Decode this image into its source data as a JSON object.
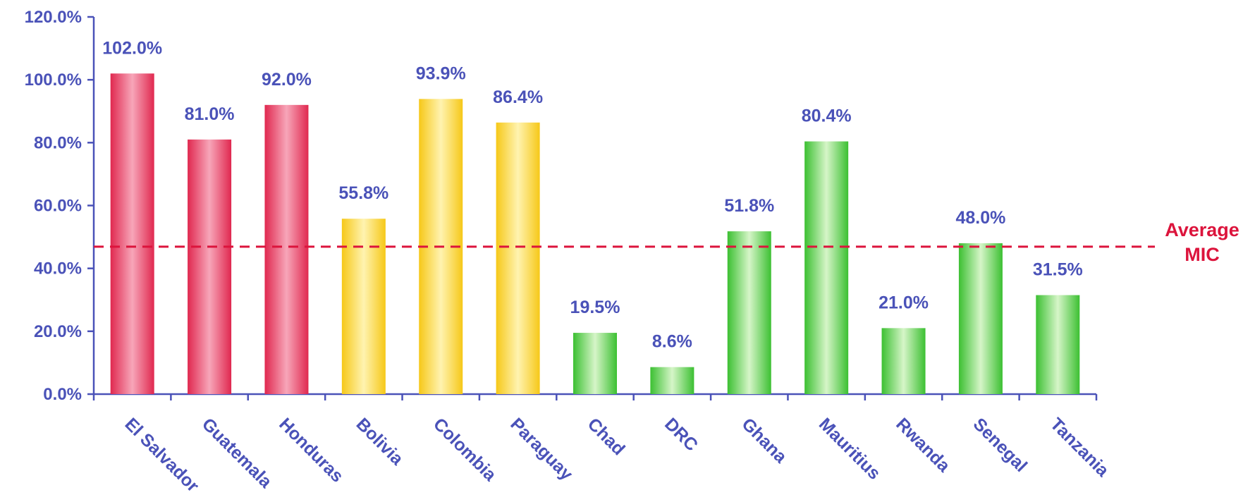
{
  "chart_data": {
    "type": "bar",
    "title": "",
    "xlabel": "",
    "ylabel": "",
    "ylim": [
      0,
      120
    ],
    "yticks": [
      0,
      20,
      40,
      60,
      80,
      100,
      120
    ],
    "ytick_labels": [
      "0.0%",
      "20.0%",
      "40.0%",
      "60.0%",
      "80.0%",
      "100.0%",
      "120.0%"
    ],
    "grid": false,
    "legend": "none",
    "categories": [
      "El Salvador",
      "Guatemala",
      "Honduras",
      "Bolivia",
      "Colombia",
      "Paraguay",
      "Chad",
      "DRC",
      "Ghana",
      "Mauritius",
      "Rwanda",
      "Senegal",
      "Tanzania"
    ],
    "values": [
      102.0,
      81.0,
      92.0,
      55.8,
      93.9,
      86.4,
      19.5,
      8.6,
      51.8,
      80.4,
      21.0,
      48.0,
      31.5
    ],
    "data_labels": [
      "102.0%",
      "81.0%",
      "92.0%",
      "55.8%",
      "93.9%",
      "86.4%",
      "19.5%",
      "8.6%",
      "51.8%",
      "80.4%",
      "21.0%",
      "48.0%",
      "31.5%"
    ],
    "bar_groups": [
      "red",
      "red",
      "red",
      "yellow",
      "yellow",
      "yellow",
      "green",
      "green",
      "green",
      "green",
      "green",
      "green",
      "green"
    ],
    "reference_line": {
      "value": 46.9,
      "label_lines": [
        "Average",
        "MIC"
      ],
      "style": "dashed",
      "color": "#dc143c"
    },
    "colors": {
      "axis": "#4a52b8",
      "text": "#4a52b8",
      "red": "#e0284f",
      "red_light": "#f7a6b9",
      "yellow": "#f6c818",
      "yellow_light": "#fff3b0",
      "green": "#3cc032",
      "green_light": "#d6f5c8",
      "reference": "#dc143c"
    }
  }
}
